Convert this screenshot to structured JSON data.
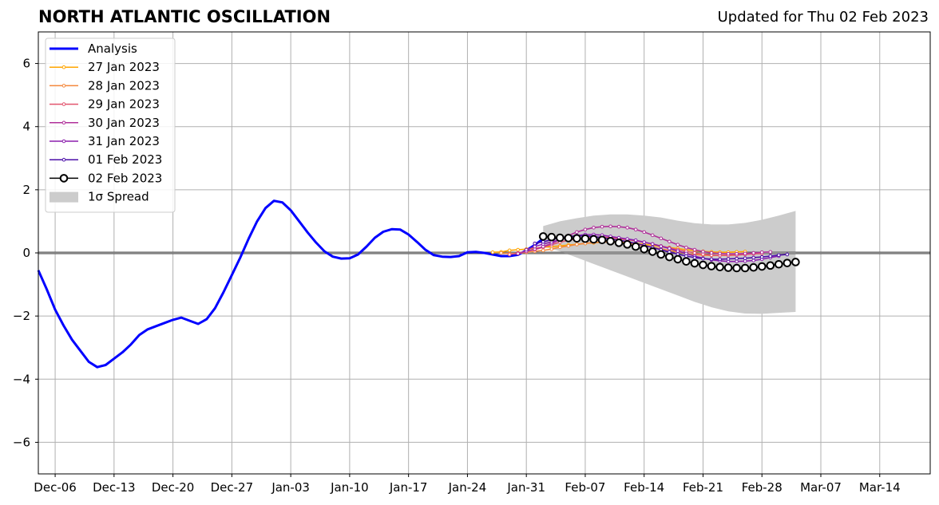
{
  "title": "NORTH ATLANTIC OSCILLATION",
  "subtitle": "Updated for Thu 02 Feb 2023",
  "chart_data": {
    "type": "line",
    "title": "NORTH ATLANTIC OSCILLATION",
    "subtitle": "Updated for Thu 02 Feb 2023",
    "xlabel": "",
    "ylabel": "",
    "xlim": [
      "2022-12-04",
      "2023-03-20"
    ],
    "ylim": [
      -7,
      7
    ],
    "grid": true,
    "legend_position": "top-left",
    "x_tick_labels": [
      "Dec-06",
      "Dec-13",
      "Dec-20",
      "Dec-27",
      "Jan-03",
      "Jan-10",
      "Jan-17",
      "Jan-24",
      "Jan-31",
      "Feb-07",
      "Feb-14",
      "Feb-21",
      "Feb-28",
      "Mar-07",
      "Mar-14"
    ],
    "x_tick_dates": [
      "2022-12-06",
      "2022-12-13",
      "2022-12-20",
      "2022-12-27",
      "2023-01-03",
      "2023-01-10",
      "2023-01-17",
      "2023-01-24",
      "2023-01-31",
      "2023-02-07",
      "2023-02-14",
      "2023-02-21",
      "2023-02-28",
      "2023-03-07",
      "2023-03-14"
    ],
    "y_ticks": [
      -6,
      -4,
      -2,
      0,
      2,
      4,
      6
    ],
    "y_tick_labels": [
      "−6",
      "−4",
      "−2",
      "0",
      "2",
      "4",
      "6"
    ],
    "zero_line": true,
    "series": [
      {
        "name": "Analysis",
        "color": "#0000ff",
        "style": "line",
        "x": [
          "2022-12-04",
          "2022-12-05",
          "2022-12-06",
          "2022-12-07",
          "2022-12-08",
          "2022-12-09",
          "2022-12-10",
          "2022-12-11",
          "2022-12-12",
          "2022-12-13",
          "2022-12-14",
          "2022-12-15",
          "2022-12-16",
          "2022-12-17",
          "2022-12-18",
          "2022-12-19",
          "2022-12-20",
          "2022-12-21",
          "2022-12-22",
          "2022-12-23",
          "2022-12-24",
          "2022-12-25",
          "2022-12-26",
          "2022-12-27",
          "2022-12-28",
          "2022-12-29",
          "2022-12-30",
          "2022-12-31",
          "2023-01-01",
          "2023-01-02",
          "2023-01-03",
          "2023-01-04",
          "2023-01-05",
          "2023-01-06",
          "2023-01-07",
          "2023-01-08",
          "2023-01-09",
          "2023-01-10",
          "2023-01-11",
          "2023-01-12",
          "2023-01-13",
          "2023-01-14",
          "2023-01-15",
          "2023-01-16",
          "2023-01-17",
          "2023-01-18",
          "2023-01-19",
          "2023-01-20",
          "2023-01-21",
          "2023-01-22",
          "2023-01-23",
          "2023-01-24",
          "2023-01-25",
          "2023-01-26",
          "2023-01-27",
          "2023-01-28",
          "2023-01-29",
          "2023-01-30",
          "2023-01-31",
          "2023-02-01",
          "2023-02-02"
        ],
        "values": [
          -0.55,
          -1.15,
          -1.8,
          -2.3,
          -2.75,
          -3.1,
          -3.45,
          -3.62,
          -3.55,
          -3.35,
          -3.15,
          -2.9,
          -2.6,
          -2.42,
          -2.32,
          -2.22,
          -2.12,
          -2.05,
          -2.15,
          -2.25,
          -2.1,
          -1.75,
          -1.25,
          -0.7,
          -0.15,
          0.45,
          1.0,
          1.42,
          1.65,
          1.6,
          1.35,
          1.0,
          0.65,
          0.33,
          0.05,
          -0.12,
          -0.18,
          -0.17,
          -0.05,
          0.2,
          0.48,
          0.67,
          0.75,
          0.74,
          0.58,
          0.35,
          0.1,
          -0.07,
          -0.12,
          -0.13,
          -0.1,
          0.02,
          0.03,
          0.0,
          -0.05,
          -0.1,
          -0.1,
          -0.06,
          0.08,
          0.25,
          0.45
        ]
      },
      {
        "name": "27 Jan 2023",
        "color": "#ffa500",
        "style": "line-dots",
        "x": [
          "2023-01-27",
          "2023-01-28",
          "2023-01-29",
          "2023-01-30",
          "2023-01-31",
          "2023-02-01",
          "2023-02-02",
          "2023-02-03",
          "2023-02-04",
          "2023-02-05",
          "2023-02-06",
          "2023-02-07",
          "2023-02-08",
          "2023-02-09",
          "2023-02-10",
          "2023-02-11",
          "2023-02-12",
          "2023-02-13",
          "2023-02-14",
          "2023-02-15",
          "2023-02-16",
          "2023-02-17",
          "2023-02-18",
          "2023-02-19",
          "2023-02-20",
          "2023-02-21",
          "2023-02-22",
          "2023-02-23",
          "2023-02-24",
          "2023-02-25",
          "2023-02-26"
        ],
        "values": [
          0.02,
          0.03,
          0.08,
          0.1,
          0.12,
          0.15,
          0.18,
          0.2,
          0.22,
          0.25,
          0.27,
          0.3,
          0.32,
          0.34,
          0.35,
          0.35,
          0.33,
          0.3,
          0.27,
          0.24,
          0.2,
          0.17,
          0.14,
          0.1,
          0.07,
          0.05,
          0.03,
          0.02,
          0.02,
          0.03,
          0.04
        ]
      },
      {
        "name": "28 Jan 2023",
        "color": "#f4883c",
        "style": "line-dots",
        "x": [
          "2023-01-28",
          "2023-01-29",
          "2023-01-30",
          "2023-01-31",
          "2023-02-01",
          "2023-02-02",
          "2023-02-03",
          "2023-02-04",
          "2023-02-05",
          "2023-02-06",
          "2023-02-07",
          "2023-02-08",
          "2023-02-09",
          "2023-02-10",
          "2023-02-11",
          "2023-02-12",
          "2023-02-13",
          "2023-02-14",
          "2023-02-15",
          "2023-02-16",
          "2023-02-17",
          "2023-02-18",
          "2023-02-19",
          "2023-02-20",
          "2023-02-21",
          "2023-02-22",
          "2023-02-23",
          "2023-02-24",
          "2023-02-25",
          "2023-02-26",
          "2023-02-27"
        ],
        "values": [
          0.0,
          -0.03,
          -0.02,
          0.02,
          0.05,
          0.08,
          0.12,
          0.18,
          0.22,
          0.27,
          0.3,
          0.33,
          0.35,
          0.35,
          0.33,
          0.3,
          0.27,
          0.23,
          0.18,
          0.13,
          0.08,
          0.03,
          -0.02,
          -0.05,
          -0.07,
          -0.08,
          -0.08,
          -0.07,
          -0.05,
          -0.03,
          -0.02
        ]
      },
      {
        "name": "29 Jan 2023",
        "color": "#e2546e",
        "style": "line-dots",
        "x": [
          "2023-01-29",
          "2023-01-30",
          "2023-01-31",
          "2023-02-01",
          "2023-02-02",
          "2023-02-03",
          "2023-02-04",
          "2023-02-05",
          "2023-02-06",
          "2023-02-07",
          "2023-02-08",
          "2023-02-09",
          "2023-02-10",
          "2023-02-11",
          "2023-02-12",
          "2023-02-13",
          "2023-02-14",
          "2023-02-15",
          "2023-02-16",
          "2023-02-17",
          "2023-02-18",
          "2023-02-19",
          "2023-02-20",
          "2023-02-21",
          "2023-02-22",
          "2023-02-23",
          "2023-02-24",
          "2023-02-25",
          "2023-02-26",
          "2023-02-27",
          "2023-02-28"
        ],
        "values": [
          -0.05,
          0.0,
          0.05,
          0.1,
          0.18,
          0.26,
          0.34,
          0.4,
          0.45,
          0.48,
          0.5,
          0.5,
          0.48,
          0.45,
          0.42,
          0.38,
          0.33,
          0.28,
          0.22,
          0.16,
          0.1,
          0.05,
          0.0,
          -0.04,
          -0.07,
          -0.08,
          -0.08,
          -0.07,
          -0.05,
          -0.03,
          -0.02
        ]
      },
      {
        "name": "30 Jan 2023",
        "color": "#b0309a",
        "style": "line-dots",
        "x": [
          "2023-01-30",
          "2023-01-31",
          "2023-02-01",
          "2023-02-02",
          "2023-02-03",
          "2023-02-04",
          "2023-02-05",
          "2023-02-06",
          "2023-02-07",
          "2023-02-08",
          "2023-02-09",
          "2023-02-10",
          "2023-02-11",
          "2023-02-12",
          "2023-02-13",
          "2023-02-14",
          "2023-02-15",
          "2023-02-16",
          "2023-02-17",
          "2023-02-18",
          "2023-02-19",
          "2023-02-20",
          "2023-02-21",
          "2023-02-22",
          "2023-02-23",
          "2023-02-24",
          "2023-02-25",
          "2023-02-26",
          "2023-02-27",
          "2023-02-28",
          "2023-03-01"
        ],
        "values": [
          -0.02,
          0.05,
          0.12,
          0.2,
          0.3,
          0.42,
          0.55,
          0.66,
          0.74,
          0.8,
          0.83,
          0.84,
          0.83,
          0.8,
          0.74,
          0.66,
          0.56,
          0.46,
          0.36,
          0.26,
          0.17,
          0.1,
          0.04,
          0.0,
          -0.02,
          -0.03,
          -0.03,
          -0.02,
          0.0,
          0.02,
          0.03
        ]
      },
      {
        "name": "31 Jan 2023",
        "color": "#8b1fae",
        "style": "line-dots",
        "x": [
          "2023-01-31",
          "2023-02-01",
          "2023-02-02",
          "2023-02-03",
          "2023-02-04",
          "2023-02-05",
          "2023-02-06",
          "2023-02-07",
          "2023-02-08",
          "2023-02-09",
          "2023-02-10",
          "2023-02-11",
          "2023-02-12",
          "2023-02-13",
          "2023-02-14",
          "2023-02-15",
          "2023-02-16",
          "2023-02-17",
          "2023-02-18",
          "2023-02-19",
          "2023-02-20",
          "2023-02-21",
          "2023-02-22",
          "2023-02-23",
          "2023-02-24",
          "2023-02-25",
          "2023-02-26",
          "2023-02-27",
          "2023-02-28",
          "2023-03-01",
          "2023-03-02"
        ],
        "values": [
          0.1,
          0.2,
          0.28,
          0.35,
          0.42,
          0.5,
          0.55,
          0.58,
          0.58,
          0.56,
          0.52,
          0.48,
          0.44,
          0.4,
          0.34,
          0.28,
          0.21,
          0.14,
          0.06,
          -0.02,
          -0.1,
          -0.17,
          -0.22,
          -0.25,
          -0.27,
          -0.27,
          -0.26,
          -0.24,
          -0.2,
          -0.15,
          -0.1
        ]
      },
      {
        "name": "01 Feb 2023",
        "color": "#4b0ea8",
        "style": "line-dots",
        "x": [
          "2023-02-01",
          "2023-02-02",
          "2023-02-03",
          "2023-02-04",
          "2023-02-05",
          "2023-02-06",
          "2023-02-07",
          "2023-02-08",
          "2023-02-09",
          "2023-02-10",
          "2023-02-11",
          "2023-02-12",
          "2023-02-13",
          "2023-02-14",
          "2023-02-15",
          "2023-02-16",
          "2023-02-17",
          "2023-02-18",
          "2023-02-19",
          "2023-02-20",
          "2023-02-21",
          "2023-02-22",
          "2023-02-23",
          "2023-02-24",
          "2023-02-25",
          "2023-02-26",
          "2023-02-27",
          "2023-02-28",
          "2023-03-01",
          "2023-03-02",
          "2023-03-03"
        ],
        "values": [
          0.3,
          0.35,
          0.42,
          0.48,
          0.52,
          0.54,
          0.54,
          0.52,
          0.48,
          0.44,
          0.4,
          0.36,
          0.3,
          0.24,
          0.17,
          0.1,
          0.03,
          -0.04,
          -0.1,
          -0.15,
          -0.18,
          -0.2,
          -0.2,
          -0.19,
          -0.18,
          -0.17,
          -0.15,
          -0.13,
          -0.1,
          -0.07,
          -0.05
        ]
      },
      {
        "name": "02 Feb 2023",
        "color": "#000000",
        "style": "line-circles",
        "x": [
          "2023-02-02",
          "2023-02-03",
          "2023-02-04",
          "2023-02-05",
          "2023-02-06",
          "2023-02-07",
          "2023-02-08",
          "2023-02-09",
          "2023-02-10",
          "2023-02-11",
          "2023-02-12",
          "2023-02-13",
          "2023-02-14",
          "2023-02-15",
          "2023-02-16",
          "2023-02-17",
          "2023-02-18",
          "2023-02-19",
          "2023-02-20",
          "2023-02-21",
          "2023-02-22",
          "2023-02-23",
          "2023-02-24",
          "2023-02-25",
          "2023-02-26",
          "2023-02-27",
          "2023-02-28",
          "2023-03-01",
          "2023-03-02",
          "2023-03-03",
          "2023-03-04"
        ],
        "values": [
          0.52,
          0.5,
          0.48,
          0.47,
          0.46,
          0.45,
          0.43,
          0.41,
          0.37,
          0.32,
          0.27,
          0.2,
          0.12,
          0.04,
          -0.05,
          -0.13,
          -0.2,
          -0.27,
          -0.33,
          -0.38,
          -0.42,
          -0.45,
          -0.47,
          -0.48,
          -0.48,
          -0.46,
          -0.43,
          -0.4,
          -0.36,
          -0.32,
          -0.29
        ]
      }
    ],
    "spread": {
      "name": "1σ Spread",
      "color": "#cccccc",
      "x": [
        "2023-02-02",
        "2023-02-04",
        "2023-02-06",
        "2023-02-08",
        "2023-02-10",
        "2023-02-12",
        "2023-02-14",
        "2023-02-16",
        "2023-02-18",
        "2023-02-20",
        "2023-02-22",
        "2023-02-24",
        "2023-02-26",
        "2023-02-28",
        "2023-03-02",
        "2023-03-04"
      ],
      "upper": [
        0.85,
        1.0,
        1.1,
        1.18,
        1.22,
        1.22,
        1.18,
        1.12,
        1.02,
        0.94,
        0.9,
        0.9,
        0.95,
        1.05,
        1.18,
        1.33
      ],
      "lower": [
        0.2,
        0.05,
        -0.15,
        -0.35,
        -0.55,
        -0.75,
        -0.95,
        -1.15,
        -1.35,
        -1.55,
        -1.72,
        -1.85,
        -1.92,
        -1.93,
        -1.9,
        -1.87
      ]
    }
  }
}
